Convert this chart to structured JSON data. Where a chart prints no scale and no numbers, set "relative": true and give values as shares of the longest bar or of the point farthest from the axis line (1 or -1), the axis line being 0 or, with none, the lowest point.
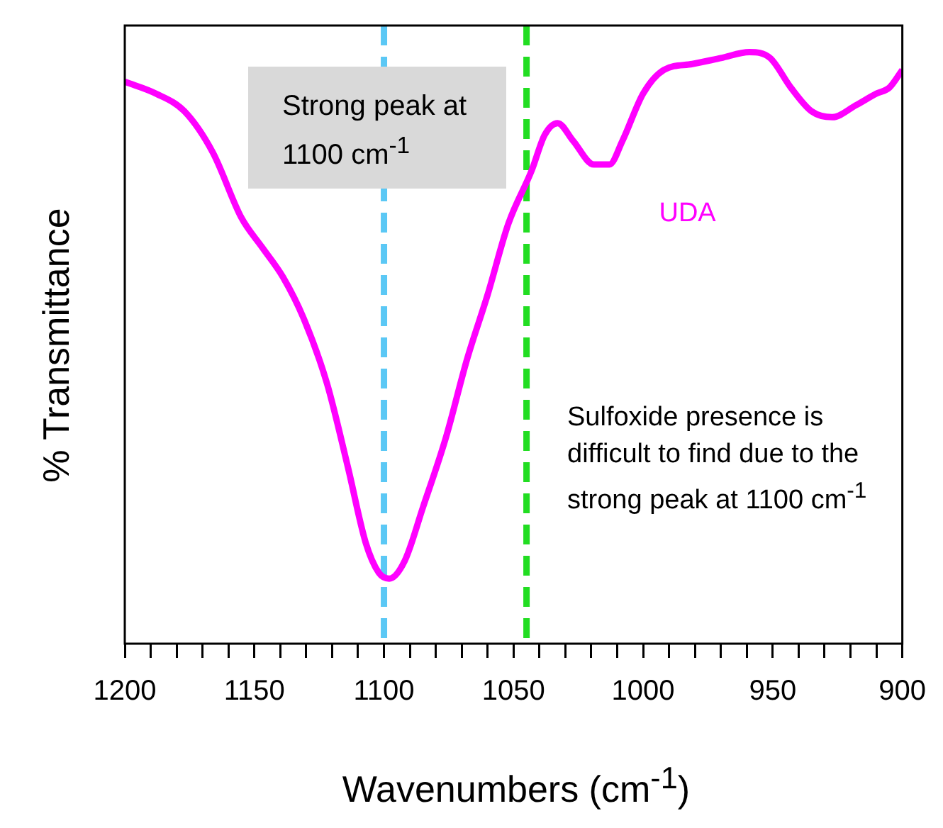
{
  "chart_data": {
    "type": "line",
    "relative": true,
    "xlabel": "Wavenumbers (cm$^{-1}$)",
    "ylabel": "% Transmittance",
    "xlim": [
      1200,
      900
    ],
    "xticks": [
      1200,
      {
        "value": 1190,
        "label": null
      },
      {
        "value": 1180,
        "label": null
      },
      {
        "value": 1170,
        "label": null
      },
      {
        "value": 1160,
        "label": null
      },
      1150,
      {
        "value": 1140,
        "label": null
      },
      {
        "value": 1130,
        "label": null
      },
      {
        "value": 1120,
        "label": null
      },
      {
        "value": 1110,
        "label": null
      },
      1100,
      {
        "value": 1090,
        "label": null
      },
      {
        "value": 1080,
        "label": null
      },
      {
        "value": 1070,
        "label": null
      },
      {
        "value": 1060,
        "label": null
      },
      1050,
      {
        "value": 1040,
        "label": null
      },
      {
        "value": 1030,
        "label": null
      },
      {
        "value": 1020,
        "label": null
      },
      {
        "value": 1010,
        "label": null
      },
      1000,
      {
        "value": 990,
        "label": null
      },
      {
        "value": 980,
        "label": null
      },
      {
        "value": 970,
        "label": null
      },
      {
        "value": 960,
        "label": null
      },
      950,
      {
        "value": 940,
        "label": null
      },
      {
        "value": 930,
        "label": null
      },
      {
        "value": 920,
        "label": null
      },
      {
        "value": 910,
        "label": null
      },
      900
    ],
    "grid": false,
    "legend": false,
    "marker": "none",
    "line_style": "solid",
    "tick_labels": "x",
    "series": [
      {
        "name": "UDA",
        "color": "#ff00ff",
        "x": [
          1200,
          1188,
          1177,
          1166,
          1155,
          1147,
          1139,
          1131,
          1122,
          1114,
          1107,
          1102,
          1098,
          1092,
          1085,
          1076,
          1068,
          1060,
          1052,
          1043,
          1038,
          1033,
          1027,
          1019,
          1013,
          1008,
          1000,
          992,
          981,
          970,
          959,
          951,
          943,
          935,
          927,
          918,
          910,
          905,
          900
        ],
        "values": [
          0.95,
          0.93,
          0.9,
          0.83,
          0.72,
          0.67,
          0.62,
          0.55,
          0.44,
          0.3,
          0.17,
          0.12,
          0.11,
          0.14,
          0.23,
          0.35,
          0.48,
          0.59,
          0.71,
          0.8,
          0.86,
          0.88,
          0.85,
          0.81,
          0.81,
          0.85,
          0.93,
          0.97,
          0.98,
          0.99,
          1.0,
          0.99,
          0.94,
          0.9,
          0.89,
          0.91,
          0.93,
          0.94,
          0.97
        ]
      }
    ],
    "ref_lines": [
      {
        "axis": "x",
        "value": 1100,
        "color": "#5bc8f5",
        "line_style": "dashed"
      },
      {
        "axis": "x",
        "value": 1045,
        "color": "#22dd22",
        "line_style": "dashed"
      }
    ],
    "annotations": [
      "Strong peak at 1100 cm$^{-1}$",
      "Sulfoxide presence is difficult to find due to the strong peak at 1100 cm$^{-1}$"
    ]
  }
}
